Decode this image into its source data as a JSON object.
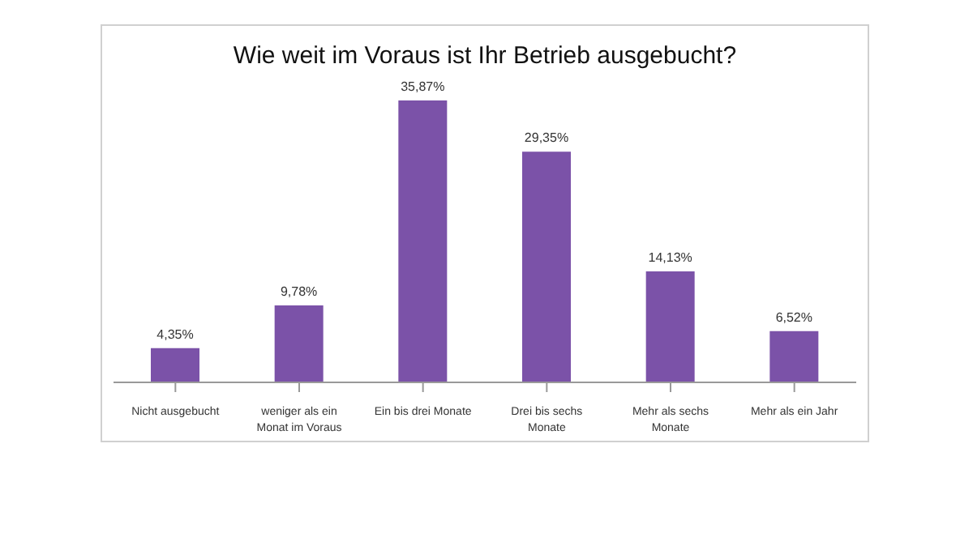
{
  "chart_data": {
    "type": "bar",
    "title": "Wie weit im Voraus ist Ihr Betrieb ausgebucht?",
    "categories": [
      "Nicht ausgebucht",
      "weniger als ein Monat im Voraus",
      "Ein bis drei Monate",
      "Drei bis sechs Monate",
      "Mehr als sechs Monate",
      "Mehr als ein Jahr"
    ],
    "values": [
      4.35,
      9.78,
      35.87,
      29.35,
      14.13,
      6.52
    ],
    "value_labels": [
      "4,35%",
      "9,78%",
      "35,87%",
      "29,35%",
      "14,13%",
      "6,52%"
    ],
    "color": "#7b52a8",
    "grid": false,
    "legend": false
  }
}
